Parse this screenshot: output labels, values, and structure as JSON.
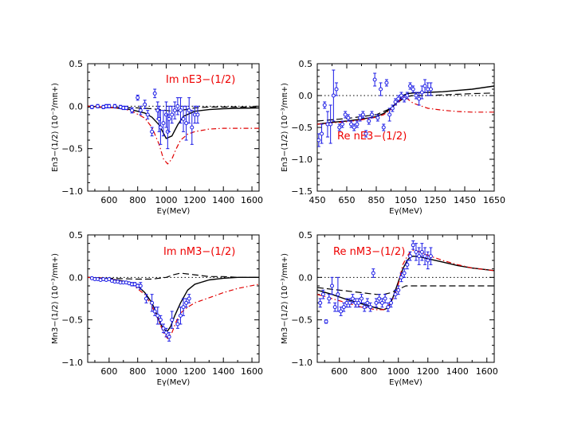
{
  "colors": {
    "model_solid": "#000000",
    "model_dash": "#000000",
    "model_red": "#e00000",
    "data": "#1a1ae6",
    "annotation": "#ee0000"
  },
  "chart_data": [
    {
      "type": "line",
      "annotation": "Im  nE3−(1/2)",
      "xlabel": "Eγ(MeV)",
      "ylabel": "En3−(1/2)  (10⁻³/mπ+)",
      "xlim": [
        450,
        1650
      ],
      "ylim": [
        -1.0,
        0.5
      ],
      "xticks": [
        600,
        800,
        1000,
        1200,
        1400,
        1600
      ],
      "xtick_labels": [
        "600",
        "800",
        "1000",
        "1200",
        "1400",
        "1600"
      ],
      "yticks": [
        -1.0,
        -0.5,
        0.0,
        0.5
      ],
      "ytick_labels": [
        "−1.0",
        "−0.5",
        "0.0",
        "0.5"
      ],
      "reference_line": 0,
      "curves": [
        {
          "style": "solid",
          "x": [
            450,
            550,
            650,
            750,
            850,
            900,
            950,
            1000,
            1040,
            1080,
            1120,
            1200,
            1300,
            1400,
            1500,
            1650
          ],
          "y": [
            0,
            -0.01,
            -0.02,
            -0.04,
            -0.08,
            -0.13,
            -0.22,
            -0.38,
            -0.35,
            -0.22,
            -0.12,
            -0.06,
            -0.04,
            -0.03,
            -0.025,
            -0.02
          ]
        },
        {
          "style": "dashed",
          "x": [
            450,
            600,
            800,
            900,
            1000,
            1050,
            1100,
            1200,
            1300,
            1400,
            1500,
            1650
          ],
          "y": [
            -0.01,
            -0.015,
            -0.02,
            -0.03,
            -0.05,
            -0.06,
            -0.05,
            -0.02,
            -0.01,
            -0.01,
            -0.01,
            -0.01
          ]
        },
        {
          "style": "dashdot",
          "x": [
            450,
            550,
            650,
            750,
            850,
            900,
            950,
            980,
            1010,
            1040,
            1070,
            1100,
            1150,
            1200,
            1300,
            1400,
            1500,
            1650
          ],
          "y": [
            0,
            -0.01,
            -0.02,
            -0.05,
            -0.14,
            -0.25,
            -0.45,
            -0.62,
            -0.68,
            -0.62,
            -0.5,
            -0.4,
            -0.33,
            -0.3,
            -0.27,
            -0.26,
            -0.26,
            -0.26
          ]
        }
      ],
      "points": {
        "x": [
          480,
          520,
          560,
          580,
          600,
          640,
          680,
          700,
          720,
          760,
          800,
          820,
          850,
          870,
          900,
          920,
          940,
          950,
          960,
          980,
          1000,
          1010,
          1020,
          1040,
          1060,
          1080,
          1100,
          1120,
          1140,
          1160,
          1180,
          1200,
          1220
        ],
        "y": [
          -0.01,
          0.0,
          -0.01,
          0.0,
          0.0,
          0.0,
          -0.01,
          -0.02,
          -0.02,
          -0.05,
          0.1,
          -0.05,
          0.02,
          -0.1,
          -0.3,
          0.15,
          -0.05,
          -0.15,
          -0.25,
          -0.2,
          -0.1,
          -0.3,
          -0.15,
          -0.1,
          -0.05,
          0.0,
          -0.05,
          -0.15,
          -0.2,
          -0.05,
          -0.25,
          -0.1,
          -0.1
        ],
        "err": [
          0.02,
          0.02,
          0.02,
          0.02,
          0.02,
          0.02,
          0.02,
          0.02,
          0.02,
          0.03,
          0.03,
          0.05,
          0.05,
          0.05,
          0.05,
          0.05,
          0.1,
          0.15,
          0.2,
          0.15,
          0.15,
          0.2,
          0.15,
          0.1,
          0.1,
          0.1,
          0.15,
          0.15,
          0.2,
          0.15,
          0.2,
          0.1,
          0.1
        ]
      }
    },
    {
      "type": "line",
      "annotation": "Re  nE3−(1/2)",
      "xlabel": "Eγ(MeV)",
      "ylabel": "En3−(1/2)  (10⁻³/mπ+)",
      "xlim": [
        450,
        1650
      ],
      "ylim": [
        -1.5,
        0.5
      ],
      "xticks": [
        450,
        650,
        850,
        1050,
        1250,
        1450,
        1650
      ],
      "xtick_labels": [
        "450",
        "650",
        "850",
        "1050",
        "1250",
        "1450",
        "1650"
      ],
      "yticks": [
        -1.5,
        -1.0,
        -0.5,
        0.0,
        0.5
      ],
      "ytick_labels": [
        "−1.5",
        "−1.0",
        "−0.5",
        "0.0",
        "0.5"
      ],
      "reference_line": 0,
      "curves": [
        {
          "style": "solid",
          "x": [
            450,
            550,
            650,
            750,
            850,
            900,
            950,
            1000,
            1030,
            1060,
            1100,
            1200,
            1300,
            1400,
            1500,
            1650
          ],
          "y": [
            -0.45,
            -0.42,
            -0.4,
            -0.37,
            -0.33,
            -0.28,
            -0.2,
            -0.08,
            0.0,
            0.03,
            0.04,
            0.05,
            0.06,
            0.08,
            0.1,
            0.15
          ]
        },
        {
          "style": "dashed",
          "x": [
            450,
            550,
            650,
            750,
            850,
            950,
            1000,
            1050,
            1100,
            1200,
            1300,
            1400,
            1500,
            1650
          ],
          "y": [
            -0.4,
            -0.38,
            -0.36,
            -0.33,
            -0.3,
            -0.2,
            -0.1,
            -0.02,
            0.0,
            0.0,
            0.01,
            0.02,
            0.03,
            0.04
          ]
        },
        {
          "style": "dashdot",
          "x": [
            450,
            550,
            650,
            750,
            850,
            900,
            950,
            1000,
            1030,
            1060,
            1100,
            1200,
            1300,
            1400,
            1500,
            1650
          ],
          "y": [
            -0.45,
            -0.43,
            -0.41,
            -0.38,
            -0.34,
            -0.3,
            -0.22,
            -0.1,
            -0.02,
            -0.05,
            -0.12,
            -0.2,
            -0.23,
            -0.25,
            -0.26,
            -0.26
          ]
        }
      ],
      "points": {
        "x": [
          460,
          480,
          500,
          520,
          540,
          560,
          580,
          600,
          620,
          640,
          660,
          680,
          700,
          720,
          740,
          760,
          780,
          800,
          820,
          840,
          860,
          880,
          900,
          920,
          940,
          960,
          980,
          1000,
          1020,
          1040,
          1060,
          1080,
          1100,
          1120,
          1140,
          1160,
          1180,
          1200,
          1220
        ],
        "y": [
          -0.7,
          -0.6,
          -0.15,
          -0.45,
          -0.45,
          0.0,
          0.1,
          -0.5,
          -0.45,
          -0.3,
          -0.35,
          -0.45,
          -0.5,
          -0.45,
          -0.35,
          -0.3,
          -0.6,
          -0.4,
          -0.3,
          0.25,
          -0.35,
          0.1,
          -0.5,
          0.2,
          -0.3,
          -0.2,
          -0.1,
          -0.05,
          0.0,
          -0.05,
          0.0,
          0.15,
          0.1,
          0.0,
          -0.05,
          0.05,
          0.15,
          0.1,
          0.1
        ],
        "err": [
          0.1,
          0.15,
          0.05,
          0.2,
          0.3,
          0.4,
          0.1,
          0.05,
          0.05,
          0.05,
          0.05,
          0.05,
          0.05,
          0.05,
          0.05,
          0.05,
          0.05,
          0.05,
          0.05,
          0.1,
          0.05,
          0.1,
          0.05,
          0.05,
          0.1,
          0.05,
          0.05,
          0.05,
          0.05,
          0.05,
          0.05,
          0.05,
          0.05,
          0.05,
          0.1,
          0.1,
          0.1,
          0.1,
          0.1
        ]
      }
    },
    {
      "type": "line",
      "annotation": "Im  nM3−(1/2)",
      "xlabel": "Eγ(MeV)",
      "ylabel": "Mn3−(1/2)  (10⁻³/mπ+)",
      "xlim": [
        450,
        1650
      ],
      "ylim": [
        -1.0,
        0.5
      ],
      "xticks": [
        600,
        800,
        1000,
        1200,
        1400,
        1600
      ],
      "xtick_labels": [
        "600",
        "800",
        "1000",
        "1200",
        "1400",
        "1600"
      ],
      "yticks": [
        -1.0,
        -0.5,
        0.0,
        0.5
      ],
      "ytick_labels": [
        "−1.0",
        "−0.5",
        "0.0",
        "0.5"
      ],
      "reference_line": 0,
      "curves": [
        {
          "style": "solid",
          "x": [
            450,
            550,
            650,
            750,
            800,
            850,
            900,
            930,
            960,
            990,
            1010,
            1030,
            1060,
            1100,
            1150,
            1200,
            1300,
            1400,
            1500,
            1650
          ],
          "y": [
            0,
            -0.01,
            -0.03,
            -0.06,
            -0.1,
            -0.18,
            -0.3,
            -0.42,
            -0.55,
            -0.62,
            -0.63,
            -0.58,
            -0.45,
            -0.3,
            -0.15,
            -0.08,
            -0.03,
            -0.01,
            0.0,
            0.0
          ]
        },
        {
          "style": "dashed",
          "x": [
            450,
            600,
            800,
            900,
            1000,
            1050,
            1100,
            1200,
            1300,
            1400,
            1500,
            1650
          ],
          "y": [
            0,
            -0.01,
            -0.02,
            -0.02,
            0.0,
            0.03,
            0.05,
            0.03,
            0.01,
            0.01,
            0.0,
            0.0
          ]
        },
        {
          "style": "dashdot",
          "x": [
            450,
            550,
            650,
            750,
            850,
            900,
            950,
            980,
            1010,
            1040,
            1070,
            1100,
            1150,
            1200,
            1300,
            1400,
            1500,
            1650
          ],
          "y": [
            0,
            -0.01,
            -0.03,
            -0.07,
            -0.2,
            -0.34,
            -0.52,
            -0.65,
            -0.72,
            -0.65,
            -0.52,
            -0.42,
            -0.35,
            -0.3,
            -0.24,
            -0.18,
            -0.13,
            -0.08
          ]
        }
      ],
      "points": {
        "x": [
          480,
          500,
          520,
          540,
          560,
          580,
          600,
          620,
          640,
          660,
          680,
          700,
          720,
          740,
          760,
          780,
          800,
          820,
          860,
          900,
          920,
          940,
          960,
          980,
          1000,
          1020,
          1040,
          1080,
          1100,
          1120,
          1140,
          1160
        ],
        "y": [
          -0.01,
          -0.02,
          -0.02,
          -0.03,
          -0.02,
          -0.03,
          -0.02,
          -0.04,
          -0.05,
          -0.05,
          -0.06,
          -0.06,
          -0.06,
          -0.07,
          -0.08,
          -0.08,
          -0.1,
          -0.1,
          -0.25,
          -0.3,
          -0.4,
          -0.45,
          -0.5,
          -0.6,
          -0.65,
          -0.7,
          -0.5,
          -0.55,
          -0.45,
          -0.35,
          -0.3,
          -0.25
        ],
        "err": [
          0.01,
          0.01,
          0.01,
          0.01,
          0.01,
          0.01,
          0.01,
          0.01,
          0.01,
          0.01,
          0.01,
          0.01,
          0.01,
          0.01,
          0.02,
          0.02,
          0.02,
          0.04,
          0.05,
          0.1,
          0.05,
          0.1,
          0.05,
          0.05,
          0.05,
          0.05,
          0.1,
          0.05,
          0.1,
          0.1,
          0.05,
          0.05
        ]
      }
    },
    {
      "type": "line",
      "annotation": "Re  nM3−(1/2)",
      "xlabel": "Eγ(MeV)",
      "ylabel": "Mn3−(1/2)  (10⁻³/mπ+)",
      "xlim": [
        450,
        1650
      ],
      "ylim": [
        -1.0,
        0.5
      ],
      "xticks": [
        600,
        800,
        1000,
        1200,
        1400,
        1600
      ],
      "xtick_labels": [
        "600",
        "800",
        "1000",
        "1200",
        "1400",
        "1600"
      ],
      "yticks": [
        -1.0,
        -0.5,
        0.0,
        0.5
      ],
      "ytick_labels": [
        "−1.0",
        "−0.5",
        "0.0",
        "0.5"
      ],
      "reference_line": 0,
      "curves": [
        {
          "style": "solid",
          "x": [
            450,
            550,
            650,
            750,
            850,
            900,
            930,
            960,
            990,
            1010,
            1030,
            1060,
            1080,
            1100,
            1150,
            1200,
            1300,
            1400,
            1500,
            1650
          ],
          "y": [
            -0.15,
            -0.2,
            -0.26,
            -0.31,
            -0.36,
            -0.38,
            -0.36,
            -0.25,
            -0.1,
            0.0,
            0.1,
            0.2,
            0.24,
            0.25,
            0.24,
            0.22,
            0.18,
            0.14,
            0.11,
            0.08
          ]
        },
        {
          "style": "dashed",
          "x": [
            450,
            550,
            650,
            750,
            850,
            900,
            950,
            1000,
            1050,
            1100,
            1200,
            1300,
            1400,
            1500,
            1650
          ],
          "y": [
            -0.12,
            -0.14,
            -0.16,
            -0.18,
            -0.2,
            -0.2,
            -0.18,
            -0.14,
            -0.1,
            -0.1,
            -0.1,
            -0.1,
            -0.1,
            -0.1,
            -0.1
          ]
        },
        {
          "style": "dashdot",
          "x": [
            450,
            550,
            650,
            750,
            850,
            900,
            950,
            990,
            1010,
            1030,
            1060,
            1080,
            1100,
            1150,
            1200,
            1300,
            1400,
            1500,
            1650
          ],
          "y": [
            -0.2,
            -0.25,
            -0.3,
            -0.35,
            -0.38,
            -0.38,
            -0.3,
            -0.15,
            0.0,
            0.15,
            0.25,
            0.3,
            0.32,
            0.3,
            0.26,
            0.2,
            0.15,
            0.11,
            0.08
          ]
        }
      ],
      "points": {
        "x": [
          470,
          490,
          510,
          530,
          550,
          570,
          590,
          610,
          630,
          650,
          670,
          690,
          710,
          730,
          750,
          770,
          790,
          810,
          830,
          850,
          870,
          890,
          910,
          930,
          950,
          980,
          1000,
          1020,
          1040,
          1060,
          1080,
          1100,
          1120,
          1140,
          1160,
          1180,
          1200,
          1220
        ],
        "y": [
          -0.3,
          -0.2,
          -0.52,
          -0.25,
          -0.1,
          -0.35,
          -0.2,
          -0.4,
          -0.35,
          -0.3,
          -0.3,
          -0.25,
          -0.3,
          -0.3,
          -0.25,
          -0.35,
          -0.3,
          -0.35,
          0.05,
          -0.3,
          -0.25,
          -0.3,
          -0.25,
          -0.35,
          -0.3,
          -0.2,
          -0.15,
          0.0,
          0.05,
          0.15,
          0.25,
          0.38,
          0.3,
          0.25,
          0.3,
          0.25,
          0.2,
          0.25
        ],
        "err": [
          0.05,
          0.05,
          0.02,
          0.05,
          0.1,
          0.05,
          0.2,
          0.05,
          0.05,
          0.05,
          0.05,
          0.05,
          0.05,
          0.05,
          0.05,
          0.05,
          0.05,
          0.05,
          0.05,
          0.05,
          0.05,
          0.05,
          0.05,
          0.05,
          0.05,
          0.05,
          0.05,
          0.05,
          0.05,
          0.05,
          0.05,
          0.05,
          0.1,
          0.1,
          0.1,
          0.1,
          0.1,
          0.1
        ]
      }
    }
  ]
}
